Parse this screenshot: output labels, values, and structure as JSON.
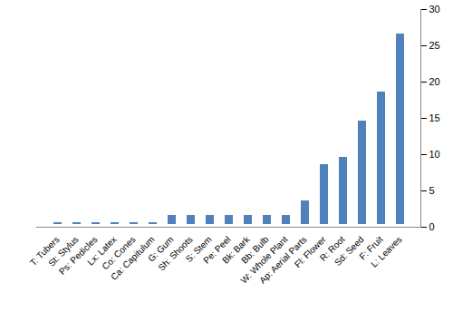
{
  "chart_data": {
    "type": "bar",
    "categories": [
      "T: Tubers",
      "St: Stylus",
      "Ps: Pedicles",
      "Lx: Latex",
      "Co: Cones",
      "Ca: Capitulum",
      "G: Gum",
      "Sh: Shoots",
      "S: Stem",
      "Pe: Peel",
      "Bk: Bark",
      "Bb: Bulb",
      "W: Whole Plant",
      "Ap: Aerial Parts",
      "Fl: Flower",
      "R: Root",
      "Sd: Seed",
      "F: Fruit",
      "L: Leaves"
    ],
    "values": [
      1,
      1,
      1,
      1,
      1,
      1,
      2,
      2,
      2,
      2,
      2,
      2,
      2,
      4,
      9,
      10,
      15,
      19,
      27
    ],
    "color": "#4f81bd",
    "ylim": [
      0,
      30
    ],
    "yticks": [
      0,
      5,
      10,
      15,
      20,
      25,
      30
    ],
    "grid": false
  }
}
